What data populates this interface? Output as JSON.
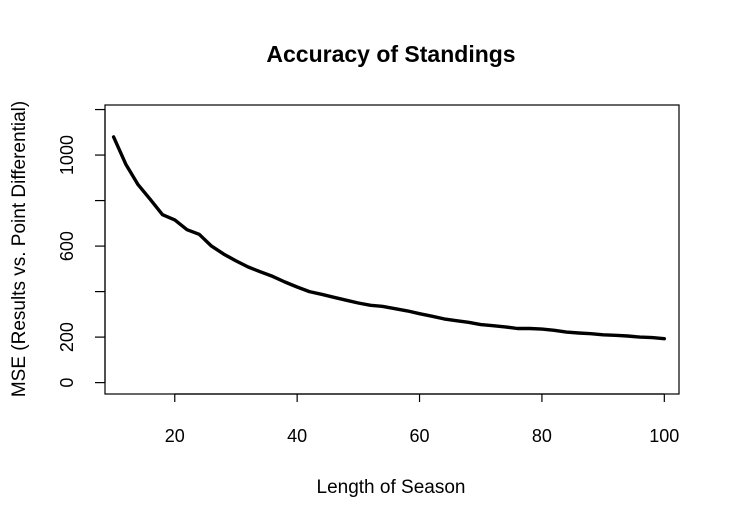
{
  "chart_data": {
    "type": "line",
    "title": "Accuracy of Standings",
    "xlabel": "Length of Season",
    "ylabel": "MSE (Results vs. Point Differential)",
    "xlim": [
      8.6,
      102.4
    ],
    "ylim": [
      -50,
      1220
    ],
    "x_ticks": [
      20,
      40,
      60,
      80,
      100
    ],
    "x_tick_labels": [
      "20",
      "40",
      "60",
      "80",
      "100"
    ],
    "y_ticks": [
      0,
      200,
      400,
      600,
      800,
      1000,
      1200
    ],
    "y_tick_labels": [
      "0",
      "200",
      "",
      "600",
      "",
      "1000",
      ""
    ],
    "grid": false,
    "legend": "none",
    "line_color": "#000000",
    "series": [
      {
        "x": [
          10,
          12,
          14,
          16,
          18,
          20,
          22,
          24,
          26,
          28,
          30,
          32,
          34,
          36,
          38,
          40,
          42,
          44,
          46,
          48,
          50,
          52,
          54,
          56,
          58,
          60,
          62,
          64,
          66,
          68,
          70,
          72,
          74,
          76,
          78,
          80,
          82,
          84,
          86,
          88,
          90,
          92,
          94,
          96,
          98,
          100
        ],
        "values": [
          1080,
          960,
          870,
          805,
          738,
          715,
          672,
          652,
          600,
          565,
          535,
          508,
          487,
          467,
          442,
          420,
          400,
          388,
          375,
          362,
          350,
          340,
          335,
          325,
          315,
          303,
          292,
          280,
          272,
          265,
          255,
          250,
          245,
          238,
          238,
          235,
          230,
          222,
          218,
          215,
          210,
          208,
          205,
          200,
          198,
          193
        ]
      }
    ]
  }
}
